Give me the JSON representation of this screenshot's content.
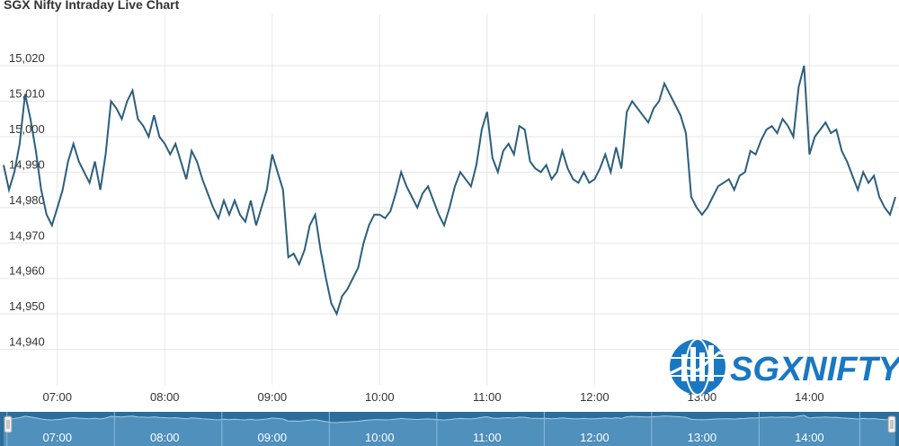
{
  "chart_data": {
    "type": "line",
    "title": "SGX Nifty Intraday Live Chart",
    "xlabel": "",
    "ylabel": "",
    "ylim": [
      14930,
      15035
    ],
    "xlim": [
      "06:30",
      "14:50"
    ],
    "y_ticks": [
      "14,940",
      "14,950",
      "14,960",
      "14,970",
      "14,980",
      "14,990",
      "15,000",
      "15,010",
      "15,020"
    ],
    "x_ticks": [
      "07:00",
      "08:00",
      "09:00",
      "10:00",
      "11:00",
      "12:00",
      "13:00",
      "14:00"
    ],
    "grid": true,
    "legend": "none",
    "navigator": true,
    "line_color": "#2c5f7c",
    "series": [
      {
        "x": [
          "06:30",
          "06:33",
          "06:36",
          "06:39",
          "06:42",
          "06:45",
          "06:48",
          "06:51",
          "06:54",
          "06:57",
          "07:00",
          "07:03",
          "07:06",
          "07:09",
          "07:12",
          "07:15",
          "07:18",
          "07:21",
          "07:24",
          "07:27",
          "07:30",
          "07:33",
          "07:36",
          "07:39",
          "07:42",
          "07:45",
          "07:48",
          "07:51",
          "07:54",
          "07:57",
          "08:00",
          "08:03",
          "08:06",
          "08:09",
          "08:12",
          "08:15",
          "08:18",
          "08:21",
          "08:24",
          "08:27",
          "08:30",
          "08:33",
          "08:36",
          "08:39",
          "08:42",
          "08:45",
          "08:48",
          "08:51",
          "08:54",
          "08:57",
          "09:00",
          "09:03",
          "09:06",
          "09:09",
          "09:12",
          "09:15",
          "09:18",
          "09:21",
          "09:24",
          "09:27",
          "09:30",
          "09:33",
          "09:36",
          "09:39",
          "09:42",
          "09:45",
          "09:48",
          "09:51",
          "09:54",
          "09:57",
          "10:00",
          "10:03",
          "10:06",
          "10:09",
          "10:12",
          "10:15",
          "10:18",
          "10:21",
          "10:24",
          "10:27",
          "10:30",
          "10:33",
          "10:36",
          "10:39",
          "10:42",
          "10:45",
          "10:48",
          "10:51",
          "10:54",
          "10:57",
          "11:00",
          "11:03",
          "11:06",
          "11:09",
          "11:12",
          "11:15",
          "11:18",
          "11:21",
          "11:24",
          "11:27",
          "11:30",
          "11:33",
          "11:36",
          "11:39",
          "11:42",
          "11:45",
          "11:48",
          "11:51",
          "11:54",
          "11:57",
          "12:00",
          "12:03",
          "12:06",
          "12:09",
          "12:12",
          "12:15",
          "12:18",
          "12:21",
          "12:24",
          "12:27",
          "12:30",
          "12:33",
          "12:36",
          "12:39",
          "12:42",
          "12:45",
          "12:48",
          "12:51",
          "12:54",
          "12:57",
          "13:00",
          "13:03",
          "13:06",
          "13:09",
          "13:12",
          "13:15",
          "13:18",
          "13:21",
          "13:24",
          "13:27",
          "13:30",
          "13:33",
          "13:36",
          "13:39",
          "13:42",
          "13:45",
          "13:48",
          "13:51",
          "13:54",
          "13:57",
          "14:00",
          "14:03",
          "14:06",
          "14:09",
          "14:12",
          "14:15",
          "14:18",
          "14:21",
          "14:24",
          "14:27",
          "14:30",
          "14:33",
          "14:36",
          "14:39",
          "14:42",
          "14:45",
          "14:48"
        ],
        "values": [
          14992,
          14985,
          14990,
          14998,
          15012,
          15005,
          14996,
          14985,
          14978,
          14975,
          14980,
          14985,
          14993,
          14998,
          14993,
          14990,
          14987,
          14993,
          14985,
          14995,
          15010,
          15008,
          15005,
          15010,
          15013,
          15005,
          15003,
          15000,
          15006,
          15000,
          14998,
          14995,
          14998,
          14993,
          14988,
          14996,
          14993,
          14988,
          14984,
          14980,
          14977,
          14982,
          14978,
          14982,
          14978,
          14976,
          14982,
          14975,
          14980,
          14985,
          14995,
          14990,
          14985,
          14966,
          14967,
          14964,
          14968,
          14975,
          14978,
          14968,
          14960,
          14953,
          14950,
          14955,
          14957,
          14960,
          14963,
          14970,
          14975,
          14978,
          14978,
          14977,
          14979,
          14984,
          14990,
          14986,
          14983,
          14980,
          14984,
          14986,
          14982,
          14978,
          14975,
          14980,
          14986,
          14990,
          14988,
          14986,
          14992,
          15002,
          15007,
          14994,
          14990,
          14996,
          14998,
          14995,
          15003,
          15002,
          14993,
          14991,
          14990,
          14992,
          14988,
          14990,
          14996,
          14991,
          14988,
          14987,
          14990,
          14987,
          14988,
          14991,
          14995,
          14990,
          14997,
          14991,
          15007,
          15010,
          15008,
          15006,
          15004,
          15008,
          15010,
          15015,
          15012,
          15009,
          15006,
          15001,
          14983,
          14980,
          14978,
          14980,
          14983,
          14986,
          14987,
          14988,
          14985,
          14989,
          14990,
          14996,
          14995,
          14999,
          15002,
          15003,
          15001,
          15005,
          15003,
          15000,
          15014,
          15020,
          14995,
          15000,
          15002,
          15004,
          15001,
          15002,
          14996,
          14993,
          14989,
          14985,
          14990,
          14987,
          14989,
          14983,
          14980,
          14978,
          14983
        ]
      }
    ]
  },
  "branding": {
    "logo_text": "SGXNIFTY",
    "logo_color": "#1a78c2"
  }
}
